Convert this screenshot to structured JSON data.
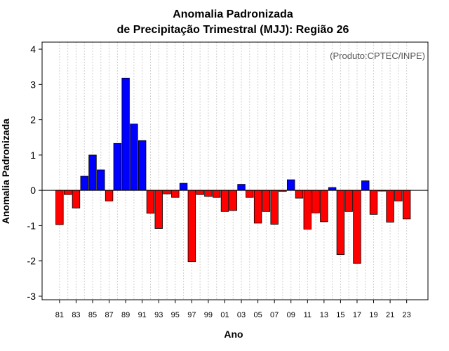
{
  "chart_data": {
    "type": "bar",
    "title_line1": "Anomalia Padronizada",
    "title_line2": "de Precipitação Trimestral (MJJ): Região 26",
    "xlabel": "Ano",
    "ylabel": "Anomalia Padronizada",
    "credit": "(Produto:CPTEC/INPE)",
    "ylim": [
      -3.1,
      4.2
    ],
    "yticks": [
      "-3",
      "-2",
      "-1",
      "0",
      "1",
      "2",
      "3",
      "4"
    ],
    "grid": true,
    "positive_color": "#0000ff",
    "negative_color": "#ff0000",
    "categories": [
      "81",
      "82",
      "83",
      "84",
      "85",
      "86",
      "87",
      "88",
      "89",
      "90",
      "91",
      "92",
      "93",
      "94",
      "95",
      "96",
      "97",
      "98",
      "99",
      "00",
      "01",
      "02",
      "03",
      "04",
      "05",
      "06",
      "07",
      "08",
      "09",
      "10",
      "11",
      "12",
      "13",
      "14",
      "15",
      "16",
      "17",
      "18",
      "19",
      "20",
      "21",
      "22",
      "23"
    ],
    "xtick_labels": [
      "81",
      "83",
      "85",
      "87",
      "89",
      "91",
      "93",
      "95",
      "97",
      "99",
      "01",
      "03",
      "05",
      "07",
      "09",
      "11",
      "13",
      "15",
      "17",
      "19",
      "21",
      "23"
    ],
    "values": [
      -0.97,
      -0.12,
      -0.5,
      0.4,
      1.0,
      0.58,
      -0.3,
      1.33,
      3.18,
      1.88,
      1.41,
      -0.65,
      -1.08,
      -0.1,
      -0.2,
      0.2,
      -2.02,
      -0.12,
      -0.17,
      -0.2,
      -0.6,
      -0.57,
      0.17,
      -0.2,
      -0.93,
      -0.6,
      -0.96,
      -0.03,
      0.3,
      -0.22,
      -1.1,
      -0.64,
      -0.89,
      0.08,
      -1.82,
      -0.6,
      -2.07,
      0.27,
      -0.68,
      -0.02,
      -0.9,
      -0.3,
      -0.81
    ]
  }
}
